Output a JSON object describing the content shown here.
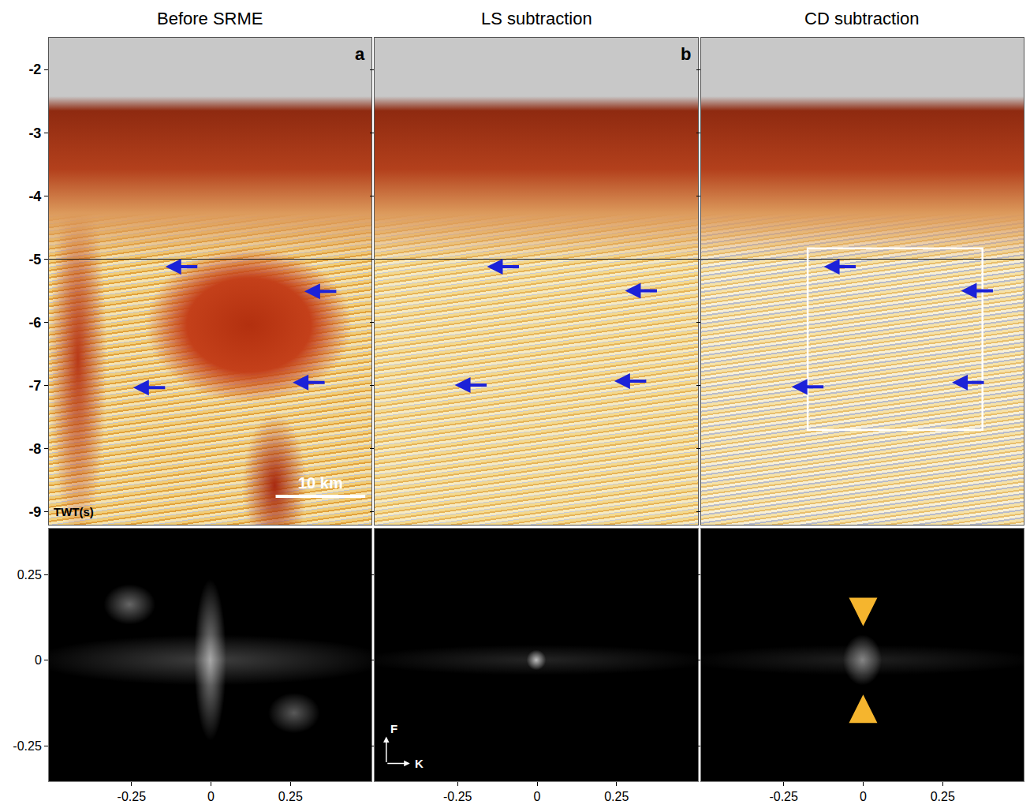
{
  "chart_data": [
    {
      "type": "seismic_section",
      "title": "Before SRME",
      "letter": "a",
      "xlim": [
        0,
        36
      ],
      "ylim": [
        -9.2,
        -1.5
      ],
      "yticks": [
        -2,
        -3,
        -4,
        -5,
        -6,
        -7,
        -8,
        -9
      ],
      "tick_labels": "y",
      "y_label": "TWT(s)",
      "reference_line": -5,
      "arrows": [
        {
          "x": 13.0,
          "y": -5.12
        },
        {
          "x": 28.5,
          "y": -5.51
        },
        {
          "x": 9.4,
          "y": -7.03
        },
        {
          "x": 27.2,
          "y": -6.95
        }
      ],
      "scale_bar": {
        "label": "10 km",
        "x": [
          25.3,
          35.3
        ],
        "y": -8.75
      }
    },
    {
      "type": "seismic_section",
      "title": "LS subtraction",
      "letter": "b",
      "xlim": [
        0,
        36
      ],
      "ylim": [
        -9.2,
        -1.5
      ],
      "yticks": [
        -2,
        -3,
        -4,
        -5,
        -6,
        -7,
        -8,
        -9
      ],
      "tick_labels": false,
      "reference_line": -5,
      "arrows": [
        {
          "x": 12.5,
          "y": -5.12
        },
        {
          "x": 27.9,
          "y": -5.5
        },
        {
          "x": 8.9,
          "y": -6.99
        },
        {
          "x": 26.7,
          "y": -6.93
        }
      ]
    },
    {
      "type": "seismic_section",
      "title": "CD subtraction",
      "xlim": [
        0,
        36
      ],
      "ylim": [
        -9.2,
        -1.5
      ],
      "yticks": [
        -2,
        -3,
        -4,
        -5,
        -6,
        -7,
        -8,
        -9
      ],
      "tick_labels": false,
      "reference_line": -5,
      "arrows": [
        {
          "x": 13.7,
          "y": -5.12
        },
        {
          "x": 29.0,
          "y": -5.5
        },
        {
          "x": 10.1,
          "y": -7.02
        },
        {
          "x": 28.0,
          "y": -6.95
        }
      ],
      "box": {
        "x": [
          11.9,
          31.4
        ],
        "y": [
          -7.7,
          -4.83
        ]
      }
    },
    {
      "type": "fk_spectrum",
      "xlim": [
        -0.51,
        0.505
      ],
      "ylim": [
        -0.353,
        0.385
      ],
      "xticks": [
        -0.25,
        0,
        0.25
      ],
      "yticks": [
        -0.25,
        0,
        0.25
      ]
    },
    {
      "type": "fk_spectrum",
      "xlim": [
        -0.51,
        0.505
      ],
      "ylim": [
        -0.353,
        0.385
      ],
      "xticks": [
        -0.25,
        0,
        0.25
      ],
      "yticks": [
        -0.25,
        0,
        0.25
      ],
      "tick_labels": "x",
      "x_label": "K",
      "y_label": "F"
    },
    {
      "type": "fk_spectrum",
      "xlim": [
        -0.51,
        0.505
      ],
      "ylim": [
        -0.353,
        0.385
      ],
      "xticks": [
        -0.25,
        0,
        0.25
      ],
      "yticks": [
        -0.25,
        0,
        0.25
      ],
      "tick_labels": "x",
      "highlight_arrows": [
        {
          "x": 0,
          "y": 0.1,
          "direction": "down"
        },
        {
          "x": 0,
          "y": -0.1,
          "direction": "up"
        }
      ]
    }
  ]
}
